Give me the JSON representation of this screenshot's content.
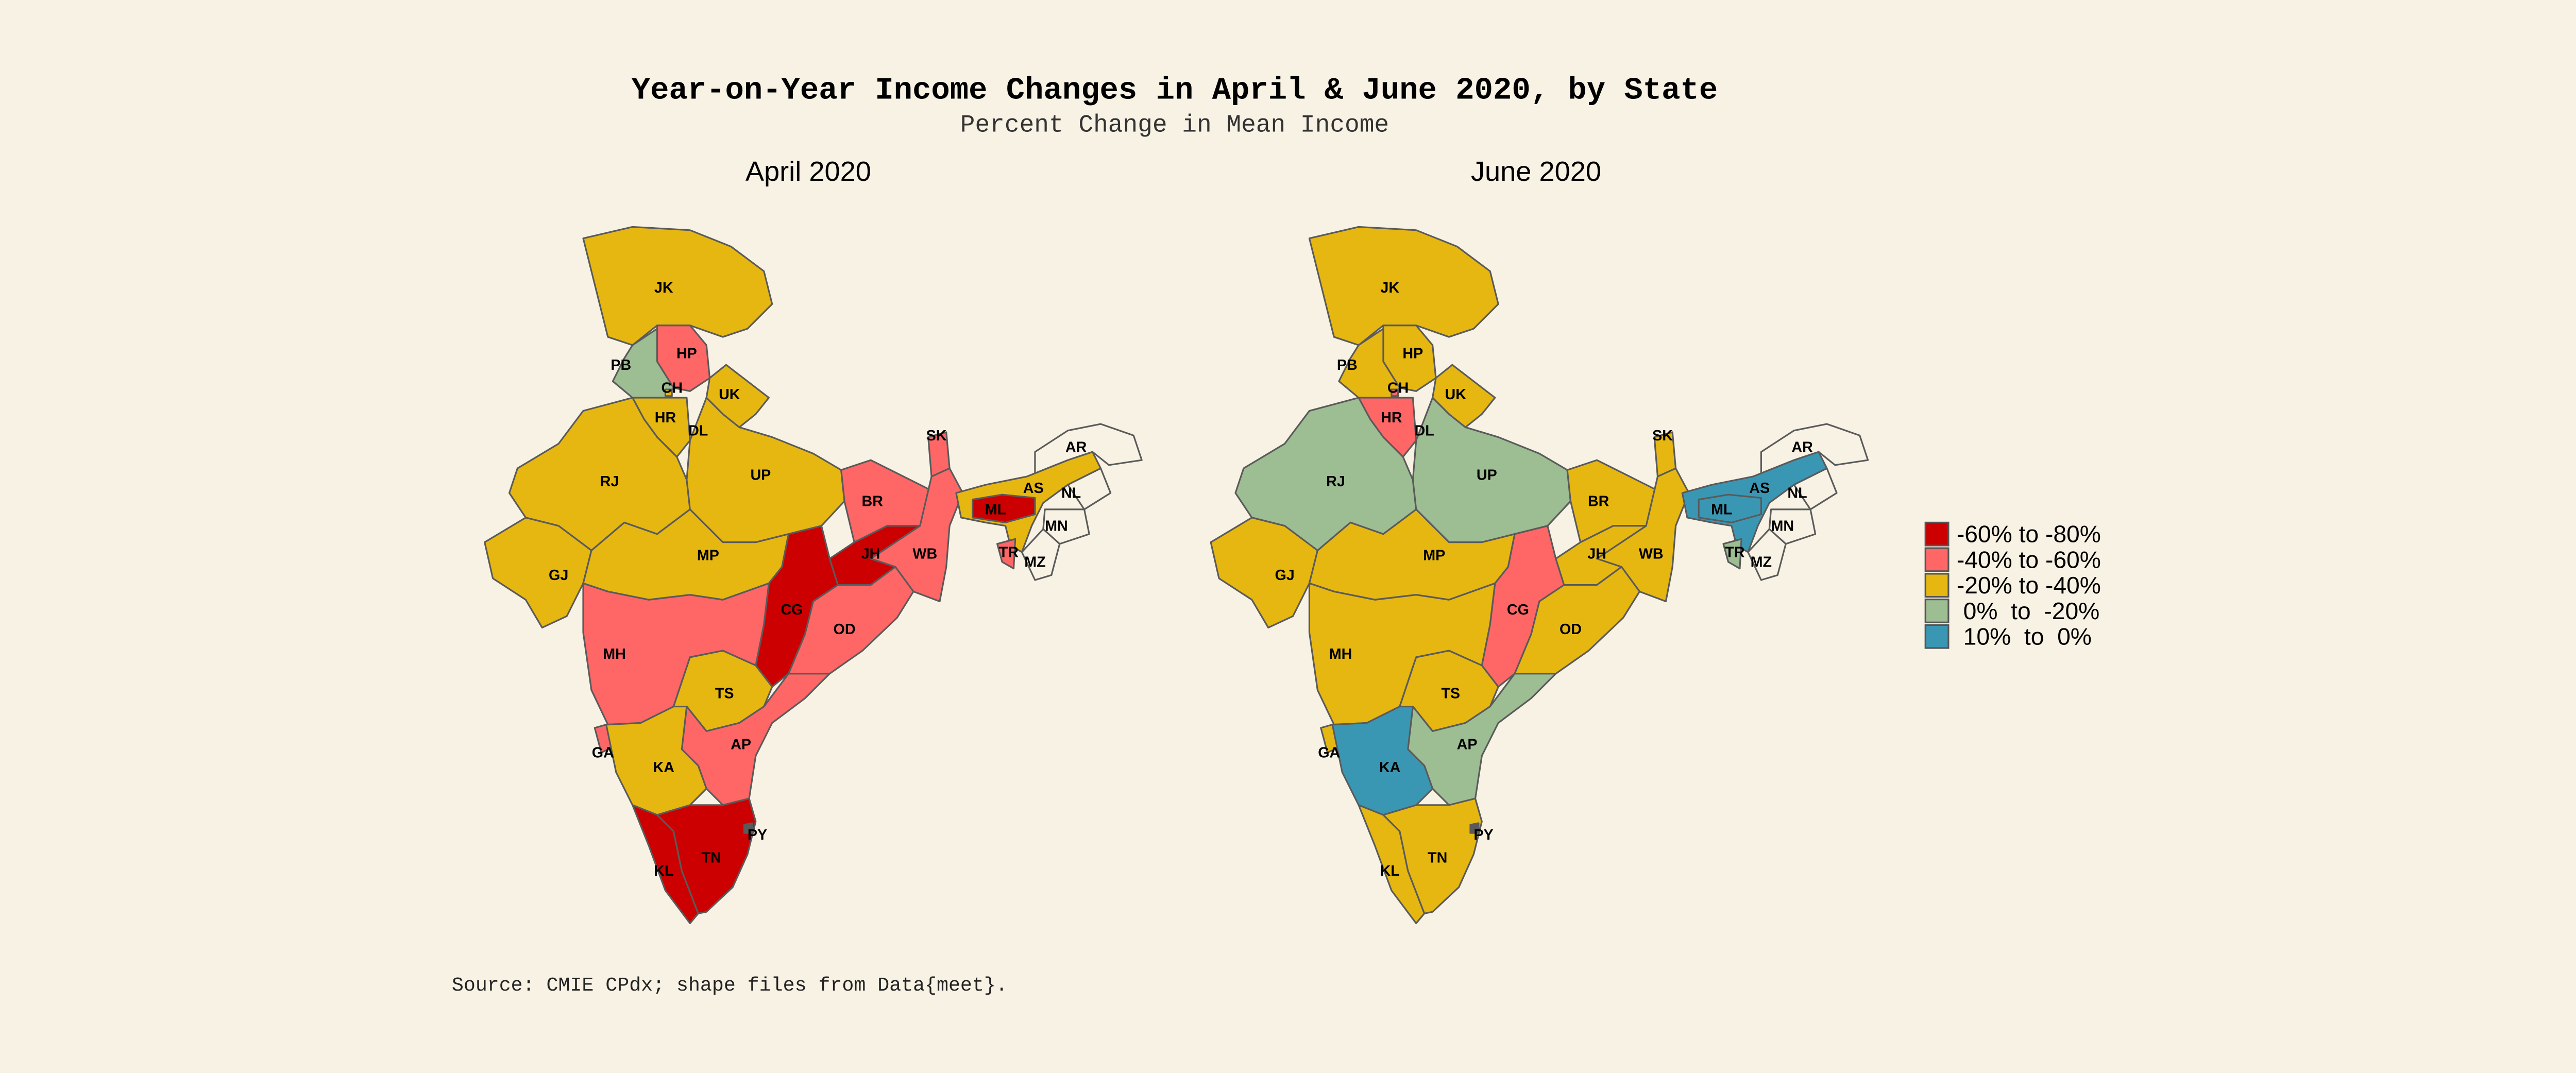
{
  "title": "Year-on-Year Income Changes in April & June 2020, by State",
  "subtitle": "Percent Change in Mean Income",
  "source": "Source: CMIE CPdx; shape files from Data{meet}.",
  "legend": {
    "items": [
      {
        "label": "-60% to -80%",
        "color": "#cc0000"
      },
      {
        "label": "-40% to -60%",
        "color": "#ff6666"
      },
      {
        "label": "-20% to -40%",
        "color": "#e6b711"
      },
      {
        "label": " 0%  to  -20%",
        "color": "#9dbd92"
      },
      {
        "label": " 10%  to  0%",
        "color": "#3a97b4"
      }
    ],
    "no_data_color": "#f8f2e4",
    "point_color": "#5a5a5a"
  },
  "chart_data": {
    "type": "choropleth",
    "panels": [
      {
        "title": "April 2020",
        "states": {
          "JK": 2,
          "HP": 1,
          "PB": 3,
          "CH": 2,
          "HR": 2,
          "DL": 0,
          "UK": 2,
          "RJ": 2,
          "UP": 2,
          "GJ": 2,
          "MP": 2,
          "BR": 1,
          "SK": 1,
          "WB": 1,
          "JH": 0,
          "CG": 0,
          "OD": 1,
          "MH": 1,
          "TS": 2,
          "GA": 1,
          "KA": 2,
          "AP": 1,
          "TN": 0,
          "KL": 0,
          "PY": null,
          "AS": 2,
          "ML": 0,
          "TR": 1,
          "AR": null,
          "NL": null,
          "MN": null,
          "MZ": null
        }
      },
      {
        "title": "June 2020",
        "states": {
          "JK": 2,
          "HP": 2,
          "PB": 2,
          "CH": 1,
          "HR": 1,
          "DL": 1,
          "UK": 2,
          "RJ": 3,
          "UP": 3,
          "GJ": 2,
          "MP": 2,
          "BR": 2,
          "SK": 2,
          "WB": 2,
          "JH": 2,
          "CG": 1,
          "OD": 2,
          "MH": 2,
          "TS": 2,
          "GA": 2,
          "KA": 4,
          "AP": 3,
          "TN": 2,
          "KL": 2,
          "PY": null,
          "AS": 4,
          "ML": 4,
          "TR": 3,
          "AR": null,
          "NL": null,
          "MN": null,
          "MZ": null
        }
      }
    ]
  }
}
